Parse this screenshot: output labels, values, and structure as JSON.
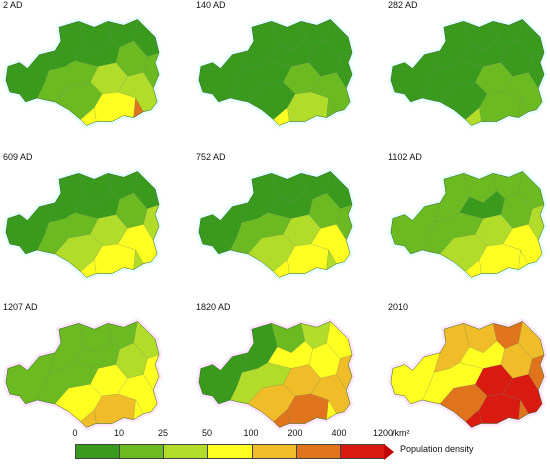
{
  "panels": [
    {
      "label": "2 AD",
      "fills": [
        0,
        0,
        0,
        0,
        0,
        0,
        1,
        1,
        1,
        2,
        2,
        1,
        3,
        3,
        5
      ],
      "highlight": "#e8ffff"
    },
    {
      "label": "140 AD",
      "fills": [
        0,
        0,
        0,
        0,
        0,
        0,
        0,
        0,
        0,
        1,
        1,
        0,
        2,
        3,
        1
      ],
      "highlight": "#e8ffff"
    },
    {
      "label": "282 AD",
      "fills": [
        0,
        0,
        0,
        0,
        0,
        0,
        0,
        0,
        0,
        1,
        1,
        0,
        1,
        2,
        1
      ],
      "highlight": "#e8ffff"
    },
    {
      "label": "609 AD",
      "fills": [
        0,
        0,
        0,
        0,
        0,
        0,
        1,
        1,
        2,
        2,
        3,
        2,
        3,
        3,
        2
      ],
      "highlight": "#e8ffff"
    },
    {
      "label": "752 AD",
      "fills": [
        0,
        0,
        0,
        0,
        0,
        0,
        1,
        1,
        1,
        2,
        3,
        2,
        3,
        3,
        2
      ],
      "highlight": "#e8ffff"
    },
    {
      "label": "1102 AD",
      "fills": [
        1,
        1,
        1,
        1,
        1,
        0,
        1,
        1,
        2,
        2,
        3,
        2,
        3,
        3,
        3
      ],
      "highlight": "#e8ffff"
    },
    {
      "label": "1207 AD",
      "fills": [
        1,
        1,
        1,
        1,
        2,
        1,
        1,
        2,
        3,
        3,
        3,
        3,
        4,
        4,
        3
      ],
      "highlight": "#ffe8ff"
    },
    {
      "label": "1820 AD",
      "fills": [
        0,
        0,
        1,
        2,
        3,
        3,
        2,
        3,
        4,
        4,
        4,
        4,
        5,
        5,
        3
      ],
      "highlight": "#ffe8ff"
    },
    {
      "label": "2010",
      "fills": [
        3,
        4,
        4,
        5,
        4,
        3,
        3,
        4,
        5,
        6,
        6,
        5,
        6,
        6,
        5
      ],
      "highlight": "#ffe8ff"
    }
  ],
  "legend": {
    "ticks": [
      "0",
      "10",
      "25",
      "50",
      "100",
      "200",
      "400",
      "1200"
    ],
    "unit": "/km²",
    "caption": "Population density",
    "colors": [
      "#3a9a1e",
      "#6cba22",
      "#b2dc2a",
      "#ffff22",
      "#f0bc28",
      "#e0741c",
      "#d81a10"
    ]
  }
}
